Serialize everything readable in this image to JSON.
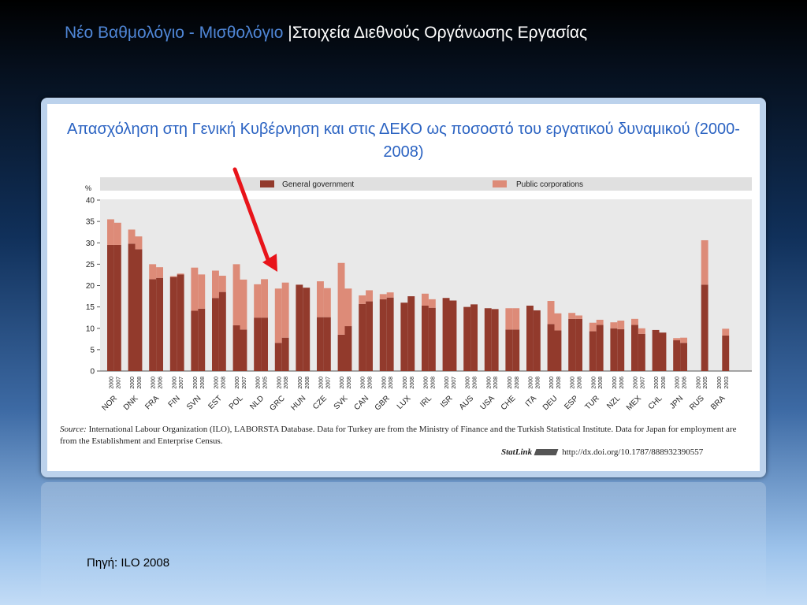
{
  "slide": {
    "title_part1": "Νέο Βαθμολόγιο - Μισθολόγιο",
    "title_part2": " |Στοιχεία Διεθνούς Οργάνωσης Εργασίας",
    "footer_source": "Πηγή: ILO 2008"
  },
  "colors": {
    "general_government": "#923a2c",
    "public_corporations": "#dd8b78",
    "title_blue": "#2b63c2",
    "arrow": "#e8141a"
  },
  "note": {
    "source_label": "Source:",
    "source_text": "International Labour Organization (ILO), LABORSTA Database. Data for Turkey are from the Ministry of Finance and the Turkish Statistical Institute. Data for Japan for employment are from the Establishment and Enterprise Census.",
    "statlink_label": "StatLink",
    "statlink_url": "http://dx.doi.org/10.1787/888932390557"
  },
  "chart_data": {
    "type": "bar",
    "stacked": true,
    "title": "Απασχόληση στη Γενική Κυβέρνηση και στις ΔΕΚΟ ως ποσοστό του εργατικού δυναμικού (2000-2008)",
    "ylabel": "%",
    "ylim": [
      0,
      40
    ],
    "yticks": [
      0,
      5,
      10,
      15,
      20,
      25,
      30,
      35,
      40
    ],
    "legend": [
      "General government",
      "Public corporations"
    ],
    "legend_position": "top",
    "grid": false,
    "countries": [
      {
        "code": "NOR",
        "years": [
          "2000",
          "2007"
        ],
        "gov": [
          29.5,
          29.5
        ],
        "pub": [
          6.0,
          5.2
        ]
      },
      {
        "code": "DNK",
        "years": [
          "2000",
          "2008"
        ],
        "gov": [
          29.8,
          28.5
        ],
        "pub": [
          3.3,
          3.0
        ]
      },
      {
        "code": "FRA",
        "years": [
          "2000",
          "2006"
        ],
        "gov": [
          21.5,
          21.8
        ],
        "pub": [
          3.5,
          2.5
        ]
      },
      {
        "code": "FIN",
        "years": [
          "2000",
          "2007"
        ],
        "gov": [
          22.0,
          22.6
        ],
        "pub": [
          0.2,
          0.2
        ]
      },
      {
        "code": "SVN",
        "years": [
          "2000",
          "2008"
        ],
        "gov": [
          14.1,
          14.6
        ],
        "pub": [
          10.1,
          8.0
        ]
      },
      {
        "code": "EST",
        "years": [
          "2000",
          "2008"
        ],
        "gov": [
          17.1,
          18.5
        ],
        "pub": [
          6.4,
          3.8
        ]
      },
      {
        "code": "POL",
        "years": [
          "2000",
          "2007"
        ],
        "gov": [
          10.7,
          9.7
        ],
        "pub": [
          14.3,
          11.7
        ]
      },
      {
        "code": "NLD",
        "years": [
          "2000",
          "2005"
        ],
        "gov": [
          12.5,
          12.5
        ],
        "pub": [
          7.8,
          9.0
        ]
      },
      {
        "code": "GRC",
        "years": [
          "2000",
          "2008"
        ],
        "gov": [
          6.6,
          7.8
        ],
        "pub": [
          12.7,
          12.9
        ]
      },
      {
        "code": "HUN",
        "years": [
          "2000",
          "2008"
        ],
        "gov": [
          20.2,
          19.5
        ],
        "pub": [
          0,
          0
        ]
      },
      {
        "code": "CZE",
        "years": [
          "2000",
          "2007"
        ],
        "gov": [
          12.6,
          12.6
        ],
        "pub": [
          8.4,
          6.8
        ]
      },
      {
        "code": "SVK",
        "years": [
          "2000",
          "2008"
        ],
        "gov": [
          8.5,
          10.5
        ],
        "pub": [
          16.8,
          8.8
        ]
      },
      {
        "code": "CAN",
        "years": [
          "2000",
          "2008"
        ],
        "gov": [
          15.7,
          16.3
        ],
        "pub": [
          2.0,
          2.6
        ]
      },
      {
        "code": "GBR",
        "years": [
          "2000",
          "2008"
        ],
        "gov": [
          16.8,
          17.2
        ],
        "pub": [
          1.2,
          1.2
        ]
      },
      {
        "code": "LUX",
        "years": [
          "2000",
          "2008"
        ],
        "gov": [
          16.0,
          17.5
        ],
        "pub": [
          0,
          0
        ]
      },
      {
        "code": "IRL",
        "years": [
          "2000",
          "2008"
        ],
        "gov": [
          15.3,
          14.8
        ],
        "pub": [
          2.8,
          2.0
        ]
      },
      {
        "code": "ISR",
        "years": [
          "2000",
          "2007"
        ],
        "gov": [
          17.1,
          16.5
        ],
        "pub": [
          0,
          0
        ]
      },
      {
        "code": "AUS",
        "years": [
          "2000",
          "2008"
        ],
        "gov": [
          15.0,
          15.6
        ],
        "pub": [
          0,
          0
        ]
      },
      {
        "code": "USA",
        "years": [
          "2000",
          "2008"
        ],
        "gov": [
          14.7,
          14.5
        ],
        "pub": [
          0,
          0
        ]
      },
      {
        "code": "CHE",
        "years": [
          "2000",
          "2008"
        ],
        "gov": [
          9.7,
          9.7
        ],
        "pub": [
          5.0,
          5.0
        ]
      },
      {
        "code": "ITA",
        "years": [
          "2000",
          "2008"
        ],
        "gov": [
          15.3,
          14.2
        ],
        "pub": [
          0,
          0
        ]
      },
      {
        "code": "DEU",
        "years": [
          "2000",
          "2008"
        ],
        "gov": [
          11.0,
          9.5
        ],
        "pub": [
          5.4,
          4.0
        ]
      },
      {
        "code": "ESP",
        "years": [
          "2000",
          "2008"
        ],
        "gov": [
          12.2,
          12.2
        ],
        "pub": [
          1.4,
          0.8
        ]
      },
      {
        "code": "TUR",
        "years": [
          "2000",
          "2008"
        ],
        "gov": [
          9.3,
          10.8
        ],
        "pub": [
          2.0,
          1.2
        ]
      },
      {
        "code": "NZL",
        "years": [
          "2000",
          "2006"
        ],
        "gov": [
          10.0,
          9.8
        ],
        "pub": [
          1.4,
          2.0
        ]
      },
      {
        "code": "MEX",
        "years": [
          "2000",
          "2007"
        ],
        "gov": [
          10.8,
          8.7
        ],
        "pub": [
          1.4,
          1.3
        ]
      },
      {
        "code": "CHL",
        "years": [
          "2000",
          "2008"
        ],
        "gov": [
          9.6,
          9.0
        ],
        "pub": [
          0,
          0
        ]
      },
      {
        "code": "JPN",
        "years": [
          "2000",
          "2006"
        ],
        "gov": [
          7.2,
          6.6
        ],
        "pub": [
          0.5,
          1.2
        ]
      },
      {
        "code": "RUS",
        "years": [
          "2000",
          "2005"
        ],
        "gov": [
          0,
          20.2
        ],
        "pub": [
          0,
          10.4
        ]
      },
      {
        "code": "BRA",
        "years": [
          "2000",
          "2003"
        ],
        "gov": [
          0,
          8.3
        ],
        "pub": [
          0,
          1.6
        ]
      }
    ]
  }
}
